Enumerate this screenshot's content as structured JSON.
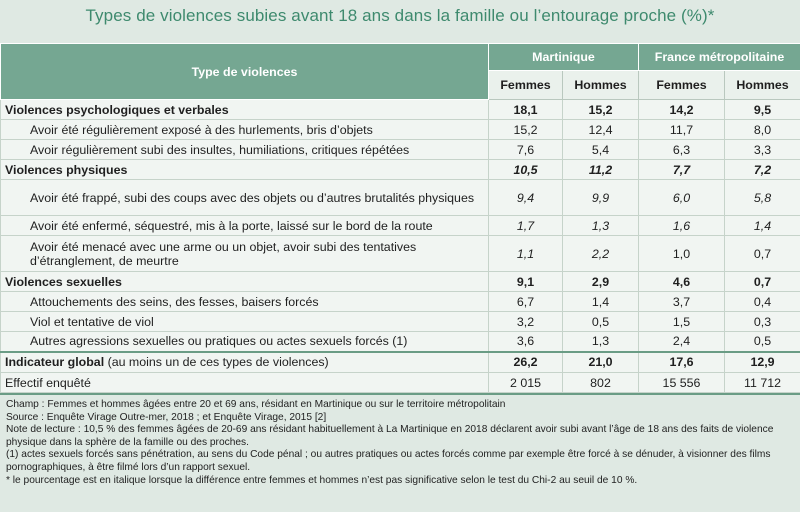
{
  "title": "Types de violences subies avant 18 ans  dans la famille ou l’entourage proche (%)*",
  "header": {
    "col_type": "Type de violences",
    "group_martinique": "Martinique",
    "group_france": "France métropolitaine",
    "women": "Femmes",
    "men": "Hommes"
  },
  "rows": [
    {
      "label": "Violences psychologiques et verbales",
      "m_f": "18,1",
      "m_h": "15,2",
      "f_f": "14,2",
      "f_h": "9,5"
    },
    {
      "label": "Avoir été régulièrement exposé à des hurlements, bris d’objets",
      "m_f": "15,2",
      "m_h": "12,4",
      "f_f": "11,7",
      "f_h": "8,0"
    },
    {
      "label": "Avoir régulièrement subi des insultes, humiliations, critiques répétées",
      "m_f": "7,6",
      "m_h": "5,4",
      "f_f": "6,3",
      "f_h": "3,3"
    },
    {
      "label": "Violences physiques",
      "m_f": "10,5",
      "m_h": "11,2",
      "f_f": "7,7",
      "f_h": "7,2"
    },
    {
      "label": "Avoir été frappé, subi des coups avec des objets ou  d’autres brutalités physiques",
      "m_f": "9,4",
      "m_h": "9,9",
      "f_f": "6,0",
      "f_h": "5,8"
    },
    {
      "label": "Avoir été enfermé, séquestré, mis à la porte,  laissé sur le bord de la route",
      "m_f": "1,7",
      "m_h": "1,3",
      "f_f": "1,6",
      "f_h": "1,4"
    },
    {
      "label": "Avoir été menacé avec une arme ou un objet, avoir subi des tentatives d’étranglement, de meurtre",
      "m_f": "1,1",
      "m_h": "2,2",
      "f_f": "1,0",
      "f_h": "0,7"
    },
    {
      "label": "Violences sexuelles",
      "m_f": "9,1",
      "m_h": "2,9",
      "f_f": "4,6",
      "f_h": "0,7"
    },
    {
      "label": "Attouchements des seins, des fesses, baisers forcés",
      "m_f": "6,7",
      "m_h": "1,4",
      "f_f": "3,7",
      "f_h": "0,4"
    },
    {
      "label": "Viol et tentative de viol",
      "m_f": "3,2",
      "m_h": "0,5",
      "f_f": "1,5",
      "f_h": "0,3"
    },
    {
      "label": "Autres agressions sexuelles ou pratiques ou actes sexuels forcés (1)",
      "m_f": "3,6",
      "m_h": "1,3",
      "f_f": "2,4",
      "f_h": "0,5"
    }
  ],
  "total": {
    "label_bold": "Indicateur global",
    "label_rest": " (au moins un de ces types de violences)",
    "m_f": "26,2",
    "m_h": "21,0",
    "f_f": "17,6",
    "f_h": "12,9"
  },
  "effectif": {
    "label": "Effectif enquêté",
    "m_f": "2 015",
    "m_h": "802",
    "f_f": "15 556",
    "f_h": "11 712"
  },
  "notes": [
    "Champ : Femmes et hommes âgées entre 20 et 69 ans, résidant en Martinique ou sur le territoire métropolitain",
    "Source : Enquête Virage Outre-mer, 2018 ; et Enquête Virage, 2015 [2]",
    "Note de lecture : 10,5 % des femmes âgées de 20-69 ans résidant habituellement à La Martinique en 2018 déclarent avoir subi avant l’âge de 18 ans des faits de violence physique dans la sphère de la famille ou des proches.",
    "(1) actes sexuels forcés sans pénétration, au sens du Code pénal ; ou autres pratiques ou actes forcés comme par exemple être forcé à se dénuder, à visionner des films pornographiques, à être filmé lors d’un rapport sexuel.",
    "* le pourcentage est en italique lorsque la différence entre femmes et hommes n’est pas significative selon le test du Chi-2 au seuil de 10 %."
  ]
}
